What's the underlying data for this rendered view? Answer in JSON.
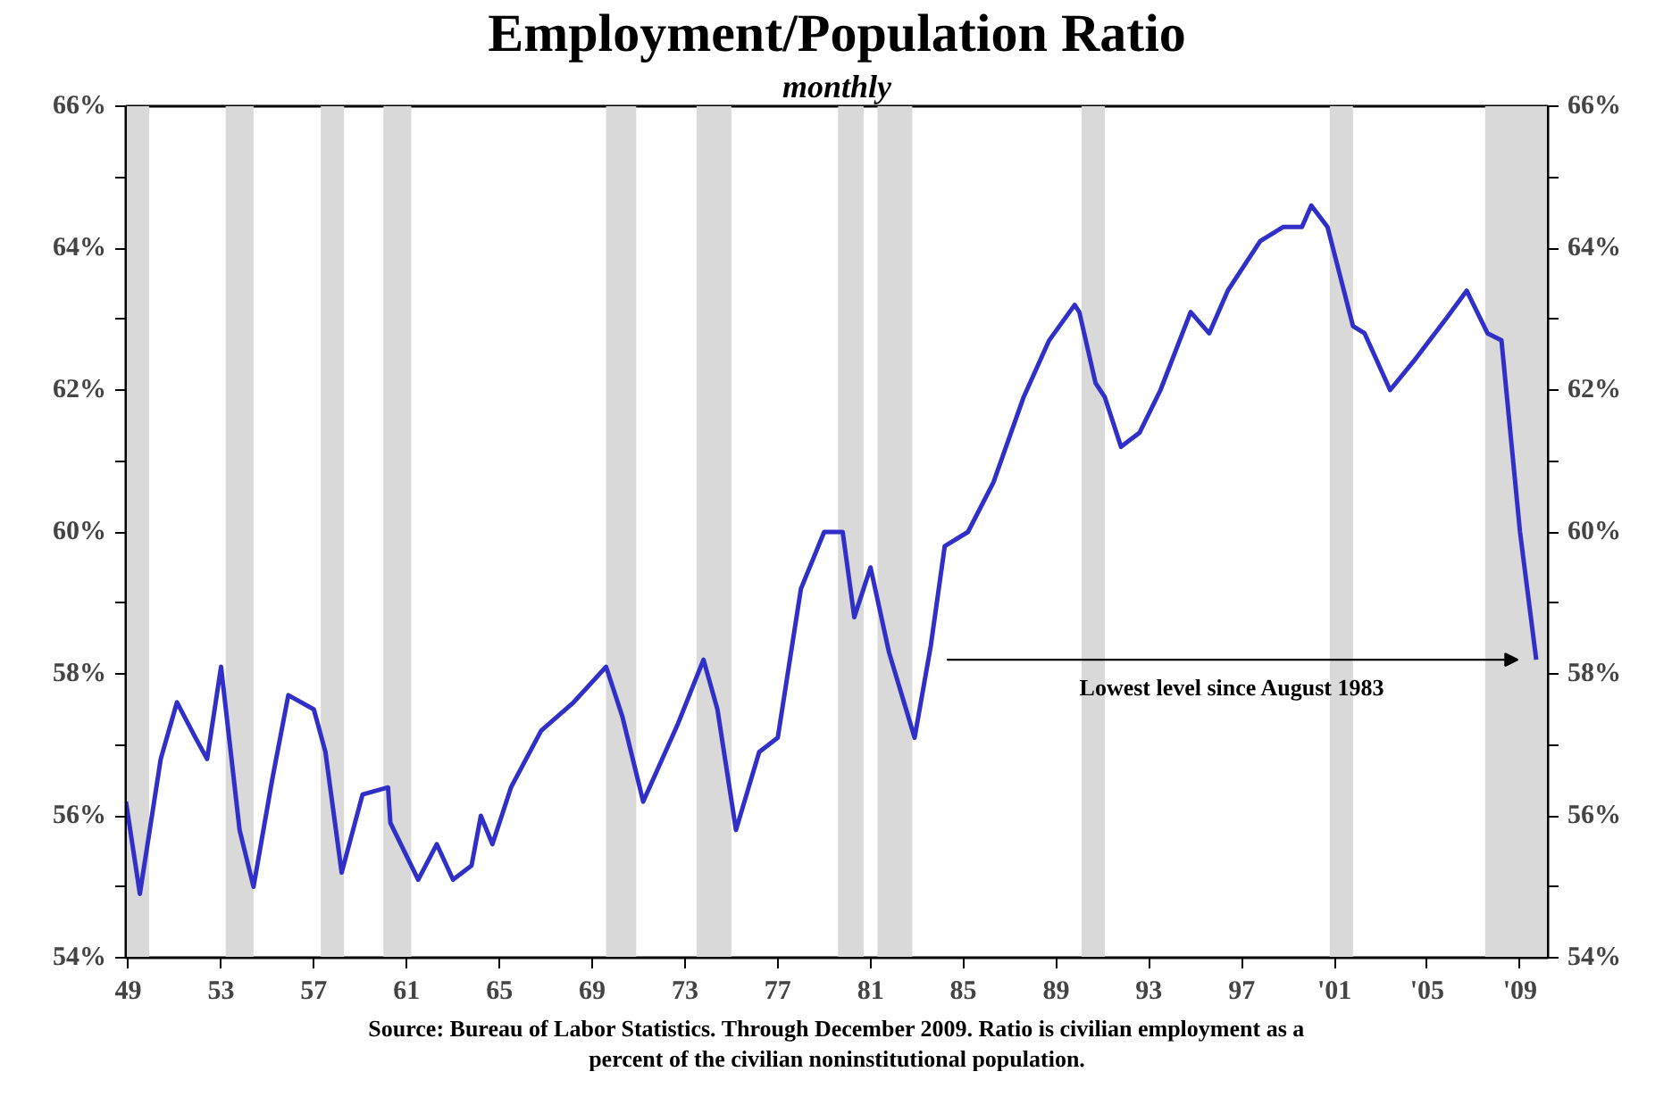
{
  "chart_data": {
    "type": "line",
    "title": "Employment/Population Ratio",
    "subtitle": "monthly",
    "x": [
      1948.9,
      1949.5,
      1950.4,
      1951.1,
      1951.9,
      1952.4,
      1953.0,
      1953.8,
      1954.4,
      1955.2,
      1955.9,
      1957.0,
      1957.5,
      1958.2,
      1959.1,
      1960.2,
      1960.3,
      1961.5,
      1962.3,
      1963.0,
      1963.8,
      1964.2,
      1964.7,
      1965.5,
      1966.8,
      1968.2,
      1969.6,
      1970.3,
      1971.2,
      1972.7,
      1973.8,
      1974.4,
      1975.2,
      1976.2,
      1977.0,
      1978.0,
      1979.0,
      1979.8,
      1980.3,
      1981.0,
      1981.8,
      1982.9,
      1983.6,
      1984.2,
      1985.2,
      1986.3,
      1987.6,
      1988.7,
      1989.8,
      1990.0,
      1990.7,
      1991.1,
      1991.8,
      1992.6,
      1993.5,
      1994.8,
      1995.6,
      1996.4,
      1997.8,
      1998.8,
      1999.6,
      2000.0,
      2000.7,
      2001.8,
      2002.3,
      2003.4,
      2004.4,
      2005.8,
      2006.7,
      2007.6,
      2008.2,
      2009.0,
      2009.7
    ],
    "series": [
      {
        "color": "#3030c8",
        "values": [
          56.2,
          54.9,
          56.8,
          57.6,
          57.1,
          56.8,
          58.1,
          55.8,
          55.0,
          56.5,
          57.7,
          57.5,
          56.9,
          55.2,
          56.3,
          56.4,
          55.9,
          55.1,
          55.6,
          55.1,
          55.3,
          56.0,
          55.6,
          56.4,
          57.2,
          57.6,
          58.1,
          57.4,
          56.2,
          57.3,
          58.2,
          57.5,
          55.8,
          56.9,
          57.1,
          59.2,
          60.0,
          60.0,
          58.8,
          59.5,
          58.3,
          57.1,
          58.4,
          59.8,
          60.0,
          60.7,
          61.9,
          62.7,
          63.2,
          63.1,
          62.1,
          61.9,
          61.2,
          61.4,
          62.0,
          63.1,
          62.8,
          63.4,
          64.1,
          64.3,
          64.3,
          64.6,
          64.3,
          62.9,
          62.8,
          62.0,
          62.4,
          63.0,
          63.4,
          62.8,
          62.7,
          60.0,
          58.2
        ]
      }
    ],
    "xlim": [
      1948.9,
      2010.2
    ],
    "xticks": [
      {
        "value": 1949,
        "label": "49"
      },
      {
        "value": 1953,
        "label": "53"
      },
      {
        "value": 1957,
        "label": "57"
      },
      {
        "value": 1961,
        "label": "61"
      },
      {
        "value": 1965,
        "label": "65"
      },
      {
        "value": 1969,
        "label": "69"
      },
      {
        "value": 1973,
        "label": "73"
      },
      {
        "value": 1977,
        "label": "77"
      },
      {
        "value": 1981,
        "label": "81"
      },
      {
        "value": 1985,
        "label": "85"
      },
      {
        "value": 1989,
        "label": "89"
      },
      {
        "value": 1993,
        "label": "93"
      },
      {
        "value": 1997,
        "label": "97"
      },
      {
        "value": 2001,
        "label": "'01"
      },
      {
        "value": 2005,
        "label": "'05"
      },
      {
        "value": 2009,
        "label": "'09"
      }
    ],
    "ylim": [
      54,
      66
    ],
    "yticks": [
      {
        "value": 54,
        "label": "54%"
      },
      {
        "value": 55,
        "label": null
      },
      {
        "value": 56,
        "label": "56%"
      },
      {
        "value": 57,
        "label": null
      },
      {
        "value": 58,
        "label": "58%"
      },
      {
        "value": 59,
        "label": null
      },
      {
        "value": 60,
        "label": "60%"
      },
      {
        "value": 61,
        "label": null
      },
      {
        "value": 62,
        "label": "62%"
      },
      {
        "value": 63,
        "label": null
      },
      {
        "value": 64,
        "label": "64%"
      },
      {
        "value": 65,
        "label": null
      },
      {
        "value": 66,
        "label": "66%"
      }
    ],
    "y2lim": [
      54,
      66
    ],
    "y2ticks": [
      {
        "value": 54,
        "label": "54%"
      },
      {
        "value": 55,
        "label": null
      },
      {
        "value": 56,
        "label": "56%"
      },
      {
        "value": 57,
        "label": null
      },
      {
        "value": 58,
        "label": "58%"
      },
      {
        "value": 59,
        "label": null
      },
      {
        "value": 60,
        "label": "60%"
      },
      {
        "value": 61,
        "label": null
      },
      {
        "value": 62,
        "label": "62%"
      },
      {
        "value": 63,
        "label": null
      },
      {
        "value": 64,
        "label": "64%"
      },
      {
        "value": 65,
        "label": null
      },
      {
        "value": 66,
        "label": "66%"
      }
    ],
    "bands": [
      {
        "axis": "x",
        "from": 1948.9,
        "to": 1949.9,
        "color": "#d9d9d9"
      },
      {
        "axis": "x",
        "from": 1953.2,
        "to": 1954.4,
        "color": "#d9d9d9"
      },
      {
        "axis": "x",
        "from": 1957.3,
        "to": 1958.3,
        "color": "#d9d9d9"
      },
      {
        "axis": "x",
        "from": 1960.0,
        "to": 1961.2,
        "color": "#d9d9d9"
      },
      {
        "axis": "x",
        "from": 1969.6,
        "to": 1970.9,
        "color": "#d9d9d9"
      },
      {
        "axis": "x",
        "from": 1973.5,
        "to": 1975.0,
        "color": "#d9d9d9"
      },
      {
        "axis": "x",
        "from": 1979.6,
        "to": 1980.7,
        "color": "#d9d9d9"
      },
      {
        "axis": "x",
        "from": 1981.3,
        "to": 1982.8,
        "color": "#d9d9d9"
      },
      {
        "axis": "x",
        "from": 1990.1,
        "to": 1991.1,
        "color": "#d9d9d9"
      },
      {
        "axis": "x",
        "from": 2000.8,
        "to": 2001.8,
        "color": "#d9d9d9"
      },
      {
        "axis": "x",
        "from": 2007.5,
        "to": 2010.2,
        "color": "#d9d9d9"
      }
    ],
    "annotations": [
      "Lowest level since August 1983",
      "Source: Bureau of Labor Statistics. Through December 2009. Ratio is civilian employment as a percent of the civilian noninstitutional population."
    ],
    "grid": false,
    "line_style": "solid",
    "marker": "none"
  }
}
